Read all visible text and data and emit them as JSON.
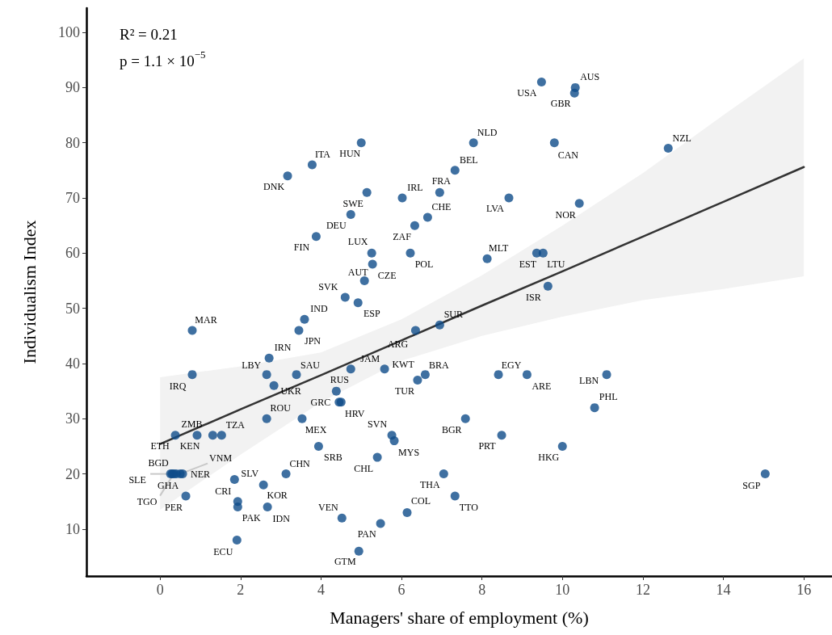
{
  "chart_data": {
    "type": "scatter",
    "xlabel": "Managers' share of employment (%)",
    "ylabel": "Individualism Index",
    "xlim": [
      -1.83,
      16.7
    ],
    "ylim": [
      1.5,
      104.4
    ],
    "xticks": [
      0,
      2,
      4,
      6,
      8,
      10,
      12,
      14,
      16
    ],
    "yticks": [
      10,
      20,
      30,
      40,
      50,
      60,
      70,
      80,
      90,
      100
    ],
    "grid": false,
    "legend": false,
    "marker": "circle",
    "series": [
      {
        "color": "#0f4c8a",
        "x": [
          9.48,
          10.32,
          10.3,
          7.79,
          12.63,
          9.8,
          5.0,
          3.78,
          3.17,
          5.14,
          6.02,
          6.95,
          7.33,
          8.67,
          10.42,
          6.65,
          4.74,
          6.33,
          3.88,
          5.26,
          6.22,
          9.36,
          9.52,
          8.13,
          5.28,
          5.08,
          9.64,
          4.6,
          4.92,
          3.59,
          0.8,
          3.45,
          6.35,
          6.95,
          2.71,
          4.74,
          5.58,
          2.65,
          3.39,
          0.8,
          2.83,
          6.59,
          6.4,
          8.41,
          9.12,
          11.1,
          4.38,
          4.45,
          4.5,
          10.8,
          2.65,
          3.53,
          7.59,
          0.38,
          1.31,
          0.92,
          1.53,
          5.76,
          5.82,
          8.49,
          3.94,
          10.0,
          5.4,
          0.26,
          0.5,
          0.56,
          0.3,
          0.4,
          0.34,
          3.13,
          7.05,
          15.04,
          1.85,
          1.93,
          2.57,
          1.93,
          2.67,
          7.33,
          0.64,
          6.14,
          4.52,
          5.48,
          1.91,
          4.94
        ],
        "values": [
          91,
          90,
          89,
          80,
          79,
          80,
          80,
          76,
          74,
          71,
          70,
          71,
          75,
          70,
          69,
          66.5,
          67,
          65,
          63,
          60,
          60,
          60,
          60,
          59,
          58,
          55,
          54,
          52,
          51,
          48,
          46,
          46,
          46,
          47,
          41,
          39,
          39,
          38,
          38,
          38,
          36,
          38,
          37,
          38,
          38,
          38,
          35,
          33,
          33,
          32,
          30,
          30,
          30,
          27,
          27,
          27,
          27,
          27,
          26,
          27,
          25,
          25,
          23,
          20,
          20,
          20,
          20,
          20,
          20,
          20,
          20,
          20,
          19,
          15,
          18,
          14,
          14,
          16,
          16,
          13,
          12,
          11,
          8,
          6
        ]
      },
      {
        "type": "line",
        "color": "#333333",
        "line_style": "solid",
        "marker": "none",
        "x": [
          0,
          2,
          4,
          6,
          8,
          10,
          12,
          14,
          16
        ],
        "values": [
          25.4,
          31.7,
          37.9,
          44.2,
          50.5,
          56.7,
          63.0,
          69.3,
          75.6
        ],
        "lower": [
          13.5,
          23.5,
          33,
          40.5,
          45,
          48.5,
          51.5,
          53.5,
          55.8
        ],
        "upper": [
          37.5,
          39.5,
          42,
          48,
          56,
          65,
          74.5,
          85,
          95.3
        ]
      }
    ],
    "annotations": [
      "R² = 0.21",
      "p = 1.1 × 10$^{−5}$",
      {
        "text": "USA",
        "x": 9.48,
        "y": 91
      },
      {
        "text": "AUS",
        "x": 10.32,
        "y": 90
      },
      {
        "text": "GBR",
        "x": 10.3,
        "y": 89
      },
      {
        "text": "NLD",
        "x": 7.79,
        "y": 80
      },
      {
        "text": "NZL",
        "x": 12.63,
        "y": 79
      },
      {
        "text": "CAN",
        "x": 9.8,
        "y": 80
      },
      {
        "text": "HUN",
        "x": 5.0,
        "y": 80
      },
      {
        "text": "ITA",
        "x": 3.78,
        "y": 76
      },
      {
        "text": "DNK",
        "x": 3.17,
        "y": 74
      },
      {
        "text": "SWE",
        "x": 5.14,
        "y": 71
      },
      {
        "text": "IRL",
        "x": 6.02,
        "y": 70
      },
      {
        "text": "FRA",
        "x": 6.95,
        "y": 71
      },
      {
        "text": "BEL",
        "x": 7.33,
        "y": 75
      },
      {
        "text": "LVA",
        "x": 8.67,
        "y": 70
      },
      {
        "text": "NOR",
        "x": 10.42,
        "y": 69
      },
      {
        "text": "CHE",
        "x": 6.65,
        "y": 66.5
      },
      {
        "text": "DEU",
        "x": 4.74,
        "y": 67
      },
      {
        "text": "ZAF",
        "x": 6.33,
        "y": 65
      },
      {
        "text": "FIN",
        "x": 3.88,
        "y": 63
      },
      {
        "text": "LUX",
        "x": 5.26,
        "y": 60
      },
      {
        "text": "POL",
        "x": 6.22,
        "y": 60
      },
      {
        "text": "EST",
        "x": 9.36,
        "y": 60
      },
      {
        "text": "LTU",
        "x": 9.52,
        "y": 60
      },
      {
        "text": "MLT",
        "x": 8.13,
        "y": 59
      },
      {
        "text": "CZE",
        "x": 5.28,
        "y": 58
      },
      {
        "text": "AUT",
        "x": 5.08,
        "y": 55
      },
      {
        "text": "ISR",
        "x": 9.64,
        "y": 54
      },
      {
        "text": "SVK",
        "x": 4.6,
        "y": 52
      },
      {
        "text": "ESP",
        "x": 4.92,
        "y": 51
      },
      {
        "text": "IND",
        "x": 3.59,
        "y": 48
      },
      {
        "text": "MAR",
        "x": 0.8,
        "y": 46
      },
      {
        "text": "JPN",
        "x": 3.45,
        "y": 46
      },
      {
        "text": "ARG",
        "x": 6.35,
        "y": 46
      },
      {
        "text": "SUR",
        "x": 6.95,
        "y": 47
      },
      {
        "text": "IRN",
        "x": 2.71,
        "y": 41
      },
      {
        "text": "JAM",
        "x": 4.74,
        "y": 39
      },
      {
        "text": "KWT",
        "x": 5.58,
        "y": 39
      },
      {
        "text": "LBY",
        "x": 2.65,
        "y": 38
      },
      {
        "text": "SAU",
        "x": 3.39,
        "y": 38
      },
      {
        "text": "IRQ",
        "x": 0.8,
        "y": 38
      },
      {
        "text": "UKR",
        "x": 2.83,
        "y": 36
      },
      {
        "text": "BRA",
        "x": 6.59,
        "y": 38
      },
      {
        "text": "TUR",
        "x": 6.4,
        "y": 37
      },
      {
        "text": "EGY",
        "x": 8.41,
        "y": 38
      },
      {
        "text": "ARE",
        "x": 9.12,
        "y": 38
      },
      {
        "text": "LBN",
        "x": 11.1,
        "y": 38
      },
      {
        "text": "RUS",
        "x": 4.38,
        "y": 35
      },
      {
        "text": "GRC",
        "x": 4.45,
        "y": 33
      },
      {
        "text": "HRV",
        "x": 4.5,
        "y": 33
      },
      {
        "text": "PHL",
        "x": 10.8,
        "y": 32
      },
      {
        "text": "ROU",
        "x": 2.65,
        "y": 30
      },
      {
        "text": "MEX",
        "x": 3.53,
        "y": 30
      },
      {
        "text": "BGR",
        "x": 7.59,
        "y": 30
      },
      {
        "text": "ETH",
        "x": 0.38,
        "y": 27
      },
      {
        "text": "ZMB",
        "x": 1.31,
        "y": 27
      },
      {
        "text": "KEN",
        "x": 0.92,
        "y": 27
      },
      {
        "text": "TZA",
        "x": 1.53,
        "y": 27
      },
      {
        "text": "SVN",
        "x": 5.76,
        "y": 27
      },
      {
        "text": "MYS",
        "x": 5.82,
        "y": 26
      },
      {
        "text": "PRT",
        "x": 8.49,
        "y": 27
      },
      {
        "text": "SRB",
        "x": 3.94,
        "y": 25
      },
      {
        "text": "HKG",
        "x": 10.0,
        "y": 25
      },
      {
        "text": "CHL",
        "x": 5.4,
        "y": 23
      },
      {
        "text": "BGD",
        "x": 0.26,
        "y": 20
      },
      {
        "text": "VNM",
        "x": 0.5,
        "y": 20
      },
      {
        "text": "NER",
        "x": 0.56,
        "y": 20
      },
      {
        "text": "SLE",
        "x": 0.3,
        "y": 20
      },
      {
        "text": "GHA",
        "x": 0.4,
        "y": 20
      },
      {
        "text": "TGO",
        "x": 0.34,
        "y": 20
      },
      {
        "text": "CHN",
        "x": 3.13,
        "y": 20
      },
      {
        "text": "THA",
        "x": 7.05,
        "y": 20
      },
      {
        "text": "SGP",
        "x": 15.04,
        "y": 20
      },
      {
        "text": "SLV",
        "x": 1.85,
        "y": 19
      },
      {
        "text": "CRI",
        "x": 1.93,
        "y": 15
      },
      {
        "text": "KOR",
        "x": 2.57,
        "y": 18
      },
      {
        "text": "PAK",
        "x": 1.93,
        "y": 14
      },
      {
        "text": "IDN",
        "x": 2.67,
        "y": 14
      },
      {
        "text": "TTO",
        "x": 7.33,
        "y": 16
      },
      {
        "text": "PER",
        "x": 0.64,
        "y": 16
      },
      {
        "text": "COL",
        "x": 6.14,
        "y": 13
      },
      {
        "text": "VEN",
        "x": 4.52,
        "y": 12
      },
      {
        "text": "PAN",
        "x": 5.48,
        "y": 11
      },
      {
        "text": "ECU",
        "x": 1.91,
        "y": 8
      },
      {
        "text": "GTM",
        "x": 4.94,
        "y": 6
      }
    ]
  }
}
